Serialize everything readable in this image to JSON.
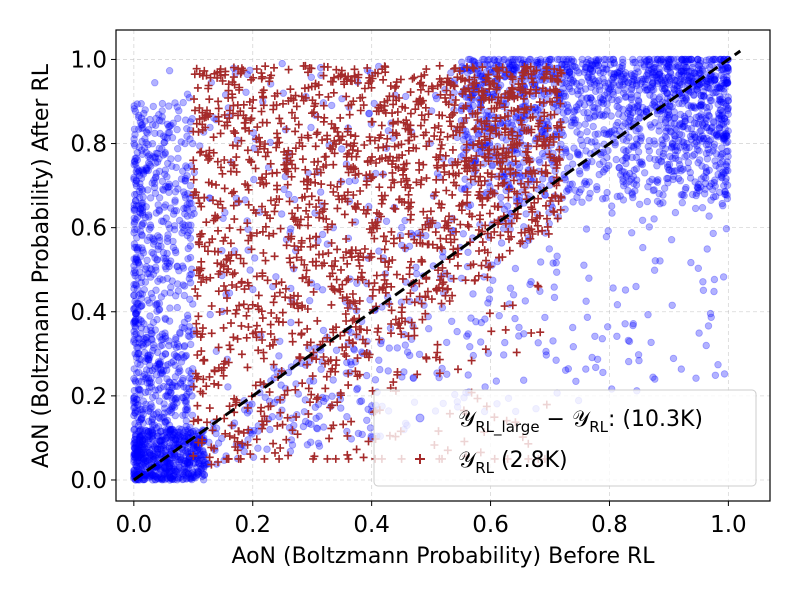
{
  "chart_data": {
    "type": "scatter",
    "title": "",
    "xlabel": "AoN (Boltzmann Probability) Before RL",
    "ylabel": "AoN (Boltzmann Probability) After RL",
    "xlim": [
      -0.03,
      1.07
    ],
    "ylim": [
      -0.05,
      1.07
    ],
    "xticks": [
      0.0,
      0.2,
      0.4,
      0.6,
      0.8,
      1.0
    ],
    "yticks": [
      0.0,
      0.2,
      0.4,
      0.6,
      0.8,
      1.0
    ],
    "xtick_labels": [
      "0.0",
      "0.2",
      "0.4",
      "0.6",
      "0.8",
      "1.0"
    ],
    "ytick_labels": [
      "0.0",
      "0.2",
      "0.4",
      "0.6",
      "0.8",
      "1.0"
    ],
    "grid": true,
    "legend_position": "bottom-right",
    "reference_line": {
      "style": "dashed",
      "color": "#000000",
      "from": [
        0.0,
        0.0
      ],
      "to": [
        1.02,
        1.02
      ]
    },
    "series": [
      {
        "name": "Y_RL_large − Y_RL",
        "label_main": "𝒴",
        "label_sub1": "RL_large",
        "label_minus": " − 𝒴",
        "label_sub2": "RL",
        "label_rest": ": (10.3K)",
        "count": "10.3K",
        "marker": "circle",
        "color": "#0000ff",
        "opacity": 0.3
      },
      {
        "name": "Y_RL",
        "label_main": "𝒴",
        "label_sub": "RL",
        "label_rest": " (2.8K)",
        "count": "2.8K",
        "marker": "plus",
        "color": "#a52a2a",
        "opacity": 1.0
      }
    ]
  }
}
